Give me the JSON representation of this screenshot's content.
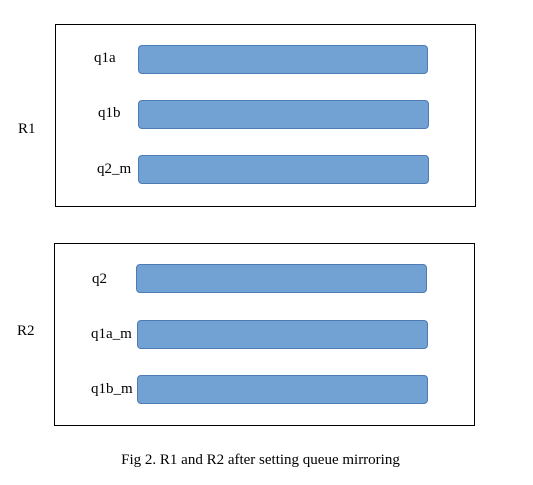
{
  "colors": {
    "queue_fill": "#72a1d4",
    "queue_border": "#4d7bb3",
    "box_border": "#000000"
  },
  "routers": [
    {
      "label": "R1",
      "queues": [
        {
          "label": "q1a"
        },
        {
          "label": "q1b"
        },
        {
          "label": "q2_m"
        }
      ]
    },
    {
      "label": "R2",
      "queues": [
        {
          "label": "q2"
        },
        {
          "label": "q1a_m"
        },
        {
          "label": "q1b_m"
        }
      ]
    }
  ],
  "caption": "Fig 2. R1 and R2 after setting queue mirroring"
}
